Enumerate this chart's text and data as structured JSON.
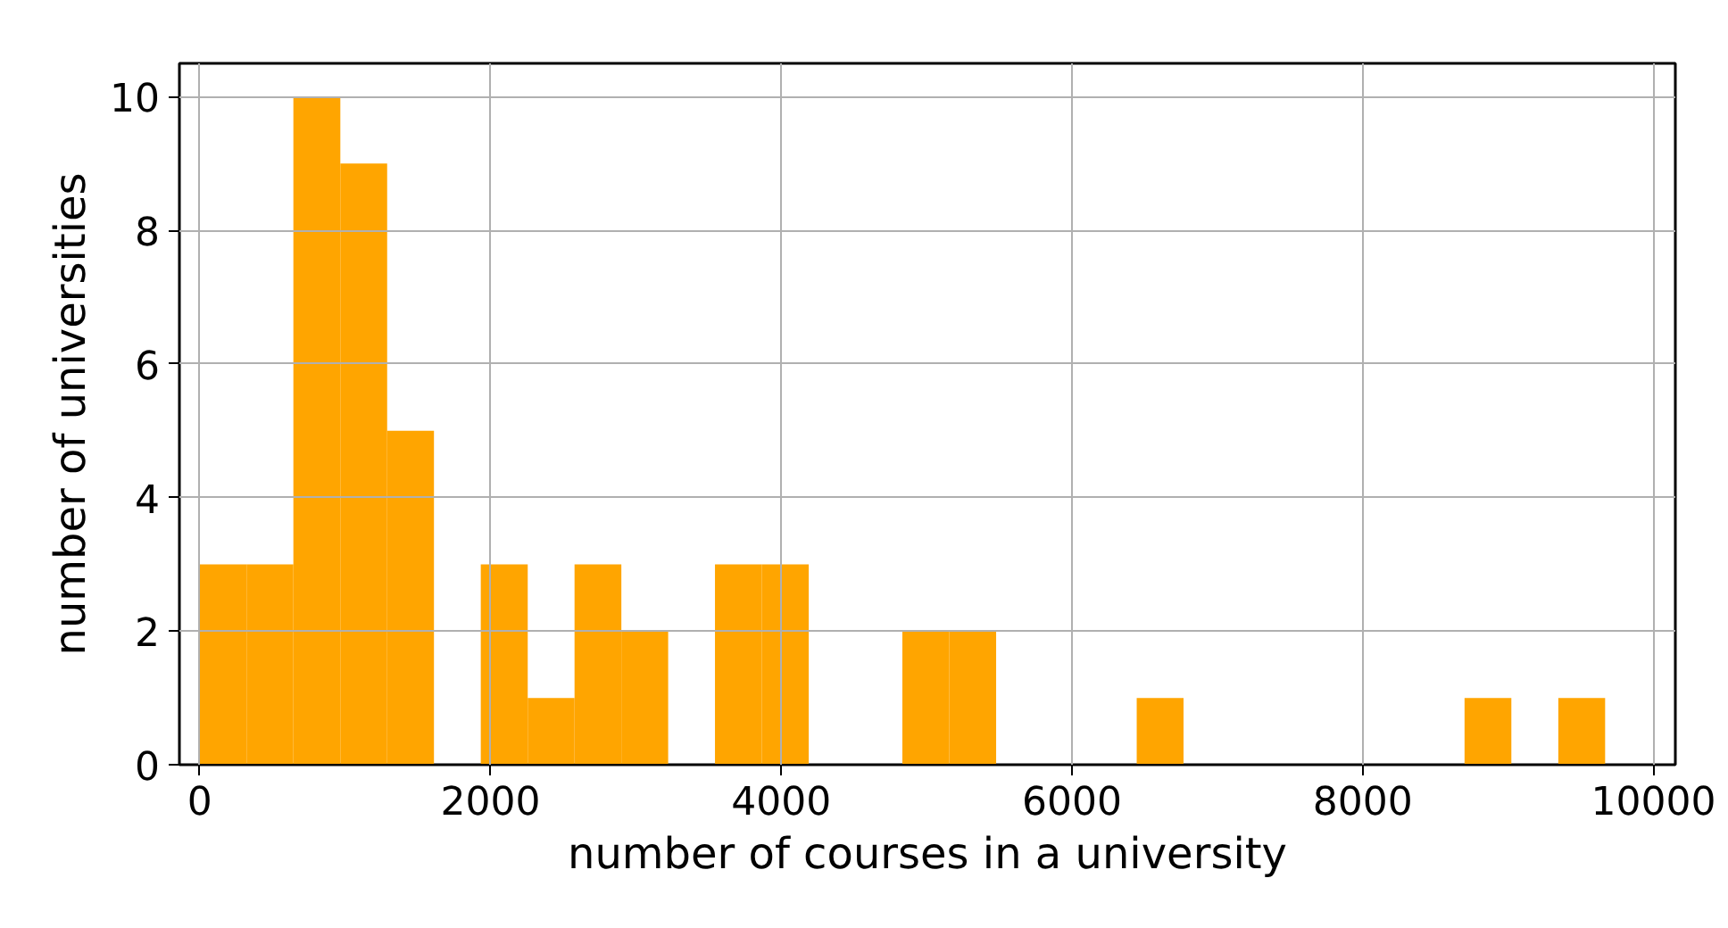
{
  "chart_data": {
    "type": "histogram",
    "xlabel": "number of courses in a university",
    "ylabel": "number of universities",
    "bins": [
      0,
      322,
      644,
      967,
      1289,
      1611,
      1933,
      2256,
      2578,
      2900,
      3222,
      3544,
      3867,
      4189,
      4511,
      4833,
      5156,
      5478,
      5800,
      6122,
      6445,
      6767,
      7089,
      7411,
      7734,
      8056,
      8378,
      8700,
      9022,
      9345,
      9667
    ],
    "values": [
      3,
      3,
      10,
      9,
      5,
      0,
      3,
      1,
      3,
      2,
      0,
      3,
      3,
      0,
      0,
      2,
      2,
      0,
      0,
      0,
      1,
      0,
      0,
      0,
      0,
      0,
      0,
      1,
      0,
      1
    ],
    "color": "#ffa500",
    "xlim": [
      -140,
      10150
    ],
    "ylim": [
      0,
      10.5
    ],
    "xticks": [
      0,
      2000,
      4000,
      6000,
      8000,
      10000
    ],
    "yticks": [
      0,
      2,
      4,
      6,
      8,
      10
    ],
    "grid": true
  }
}
